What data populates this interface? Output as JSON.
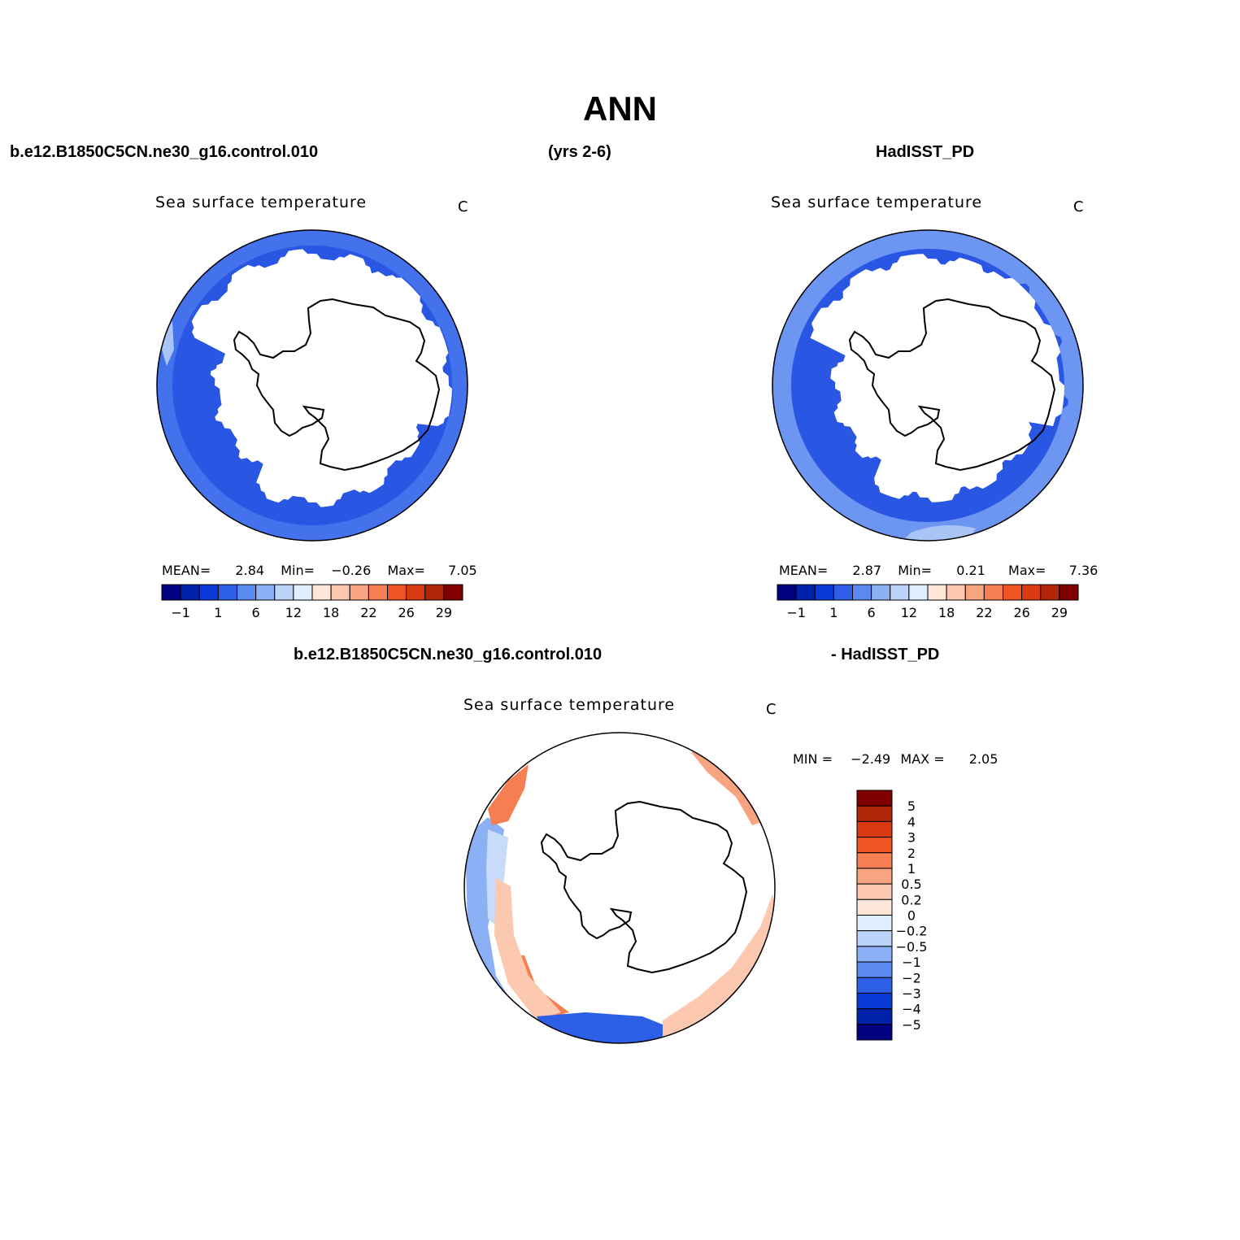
{
  "title": "ANN",
  "header": {
    "case_name": "b.e12.B1850C5CN.ne30_g16.control.010",
    "years": "(yrs 2-6)",
    "obs_name": "HadISST_PD"
  },
  "panels": [
    {
      "id": "model",
      "subtitle": "Sea surface temperature",
      "units": "C",
      "stats": {
        "mean_label": "MEAN=",
        "mean": "2.84",
        "min_label": "Min=",
        "min": "−0.26",
        "max_label": "Max=",
        "max": "7.05"
      }
    },
    {
      "id": "obs",
      "subtitle": "Sea surface temperature",
      "units": "C",
      "stats": {
        "mean_label": "MEAN=",
        "mean": "2.87",
        "min_label": "Min=",
        "min": "0.21",
        "max_label": "Max=",
        "max": "7.36"
      }
    },
    {
      "id": "diff",
      "title_left": "b.e12.B1850C5CN.ne30_g16.control.010",
      "title_right": "- HadISST_PD",
      "subtitle": "Sea surface temperature",
      "units": "C",
      "stats": {
        "min_label": "MIN =",
        "min": "−2.49",
        "max_label": "MAX =",
        "max": "2.05"
      }
    }
  ],
  "colorbar_abs": {
    "colors": [
      "#000080",
      "#0022a8",
      "#0a3ad6",
      "#2d5fe6",
      "#5a8af0",
      "#8cb0f5",
      "#bcd3fa",
      "#e1ecfc",
      "#fde6d8",
      "#fcc9b0",
      "#f9a481",
      "#f77e52",
      "#ef5422",
      "#d93a10",
      "#b02606",
      "#800000"
    ],
    "tick_labels": [
      "−1",
      "1",
      "6",
      "12",
      "18",
      "22",
      "26",
      "29"
    ]
  },
  "colorbar_diff": {
    "colors": [
      "#800000",
      "#b02606",
      "#d93a10",
      "#ef5422",
      "#f77e52",
      "#f9a481",
      "#fcc9b0",
      "#fde6d8",
      "#e1ecfc",
      "#bcd3fa",
      "#8cb0f5",
      "#5a8af0",
      "#2d5fe6",
      "#0a3ad6",
      "#0022a8",
      "#000080"
    ],
    "tick_labels": [
      "5",
      "4",
      "3",
      "2",
      "1",
      "0.5",
      "0.2",
      "0",
      "−0.2",
      "−0.5",
      "−1",
      "−2",
      "−3",
      "−4",
      "−5"
    ]
  },
  "map_colors": {
    "sst_deep": "#2a56e4",
    "sst_mid": "#4471ec",
    "sst_light": "#6d95f2",
    "sst_pale": "#a9c4f6",
    "diff_blue": "#2d5fe6",
    "diff_blue_light": "#8cb0f5",
    "diff_blue_pale": "#c9dbfb",
    "diff_orange": "#f77e52",
    "diff_orange_light": "#fcc9b0",
    "diff_orange_mid": "#f9a481"
  }
}
